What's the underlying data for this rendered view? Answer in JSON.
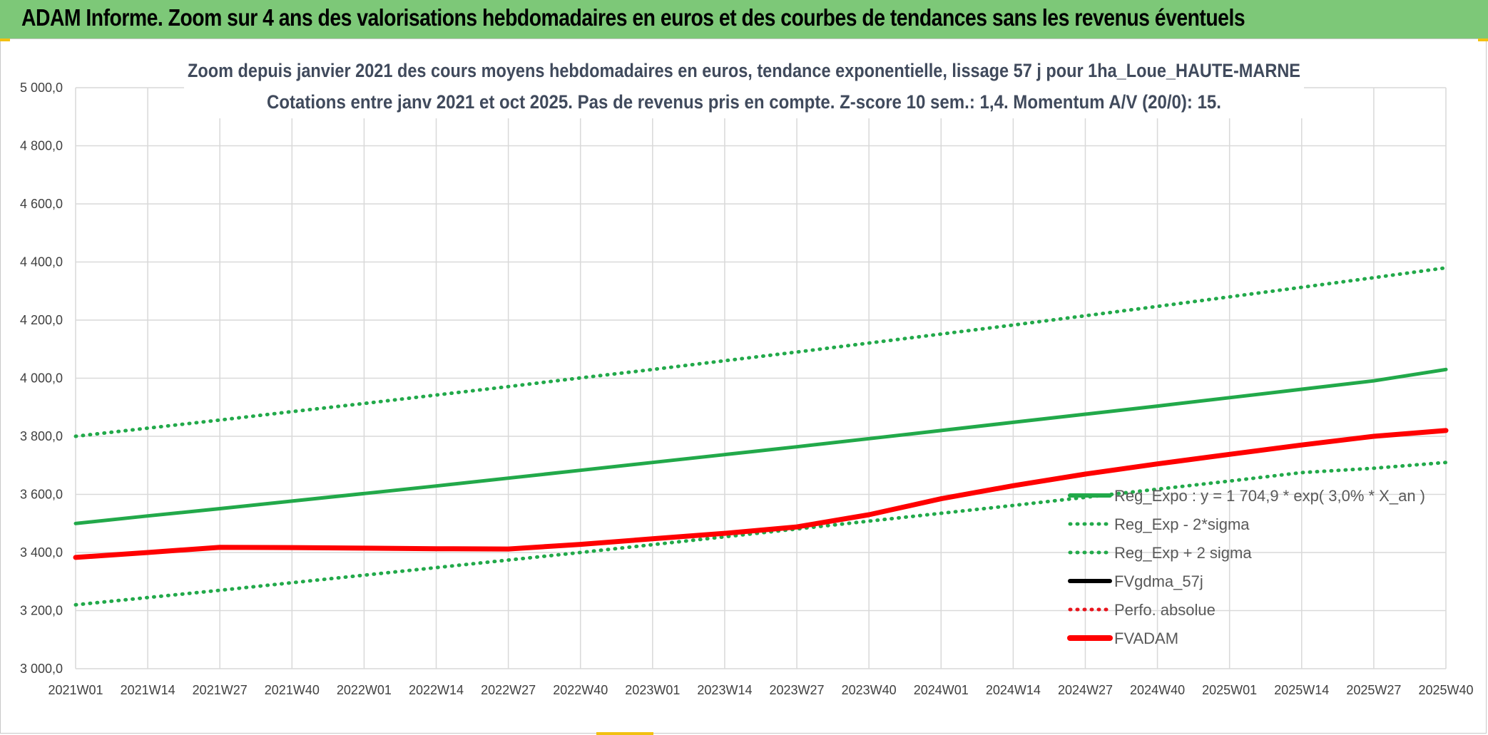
{
  "header": {
    "title": "ADAM Informe. Zoom sur 4 ans des valorisations hebdomadaires en euros et des courbes de tendances sans les revenus éventuels"
  },
  "colors": {
    "header_bg": "#7dc878",
    "reg_expo": "#22a94a",
    "fvgdma": "#000000",
    "perfo": "#e8141c",
    "fvadam": "#ff0000",
    "grid": "#d9d9d9"
  },
  "chart_data": {
    "type": "line",
    "title_line1": "Zoom depuis janvier 2021 des cours moyens hebdomadaires en euros, tendance exponentielle, lissage 57 j pour 1ha_Loue_HAUTE-MARNE",
    "title_line2": "Cotations entre janv 2021 et oct 2025. Pas de revenus pris en compte. Z-score 10 sem.: 1,4. Momentum A/V (20/0): 15.",
    "ylim": [
      3000,
      5000
    ],
    "y_ticks": [
      "3 000,0",
      "3 200,0",
      "3 400,0",
      "3 600,0",
      "3 800,0",
      "4 000,0",
      "4 200,0",
      "4 400,0",
      "4 600,0",
      "4 800,0",
      "5 000,0"
    ],
    "categories": [
      "2021W01",
      "2021W14",
      "2021W27",
      "2021W40",
      "2022W01",
      "2022W14",
      "2022W27",
      "2022W40",
      "2023W01",
      "2023W14",
      "2023W27",
      "2023W40",
      "2024W01",
      "2024W14",
      "2024W27",
      "2024W40",
      "2025W01",
      "2025W14",
      "2025W27",
      "2025W40"
    ],
    "legend": [
      {
        "name": "Reg_Expo : y = 1 704,9 * exp( 3,0% *  X_an )",
        "style": "solid",
        "color": "#22a94a"
      },
      {
        "name": "Reg_Exp - 2*sigma",
        "style": "dotted",
        "color": "#22a94a"
      },
      {
        "name": "Reg_Exp + 2 sigma",
        "style": "dotted",
        "color": "#22a94a"
      },
      {
        "name": "FVgdma_57j",
        "style": "solid",
        "color": "#000000"
      },
      {
        "name": "Perfo. absolue",
        "style": "dotted",
        "color": "#e8141c"
      },
      {
        "name": "FVADAM",
        "style": "solid",
        "color": "#ff0000"
      }
    ],
    "series": [
      {
        "name": "Reg_Expo",
        "values": [
          3500,
          3526,
          3551,
          3577,
          3603,
          3629,
          3656,
          3683,
          3710,
          3737,
          3764,
          3792,
          3820,
          3848,
          3876,
          3904,
          3933,
          3962,
          3991,
          4030
        ]
      },
      {
        "name": "Reg_Exp - 2*sigma",
        "values": [
          3220,
          3245,
          3270,
          3296,
          3322,
          3348,
          3374,
          3400,
          3427,
          3454,
          3481,
          3508,
          3535,
          3562,
          3590,
          3618,
          3646,
          3675,
          3690,
          3710
        ]
      },
      {
        "name": "Reg_Exp + 2 sigma",
        "values": [
          3800,
          3828,
          3856,
          3885,
          3913,
          3942,
          3971,
          4001,
          4030,
          4060,
          4090,
          4121,
          4152,
          4183,
          4215,
          4247,
          4280,
          4313,
          4346,
          4380
        ]
      },
      {
        "name": "FVgdma_57j",
        "values": [
          3383,
          3400,
          3418,
          3417,
          3415,
          3413,
          3412,
          3428,
          3447,
          3466,
          3488,
          3530,
          3585,
          3630,
          3670,
          3705,
          3738,
          3770,
          3800,
          3820
        ]
      },
      {
        "name": "FVADAM",
        "values": [
          3383,
          3400,
          3418,
          3417,
          3415,
          3413,
          3412,
          3428,
          3447,
          3466,
          3488,
          3530,
          3585,
          3630,
          3670,
          3705,
          3738,
          3770,
          3800,
          3820
        ]
      }
    ]
  }
}
